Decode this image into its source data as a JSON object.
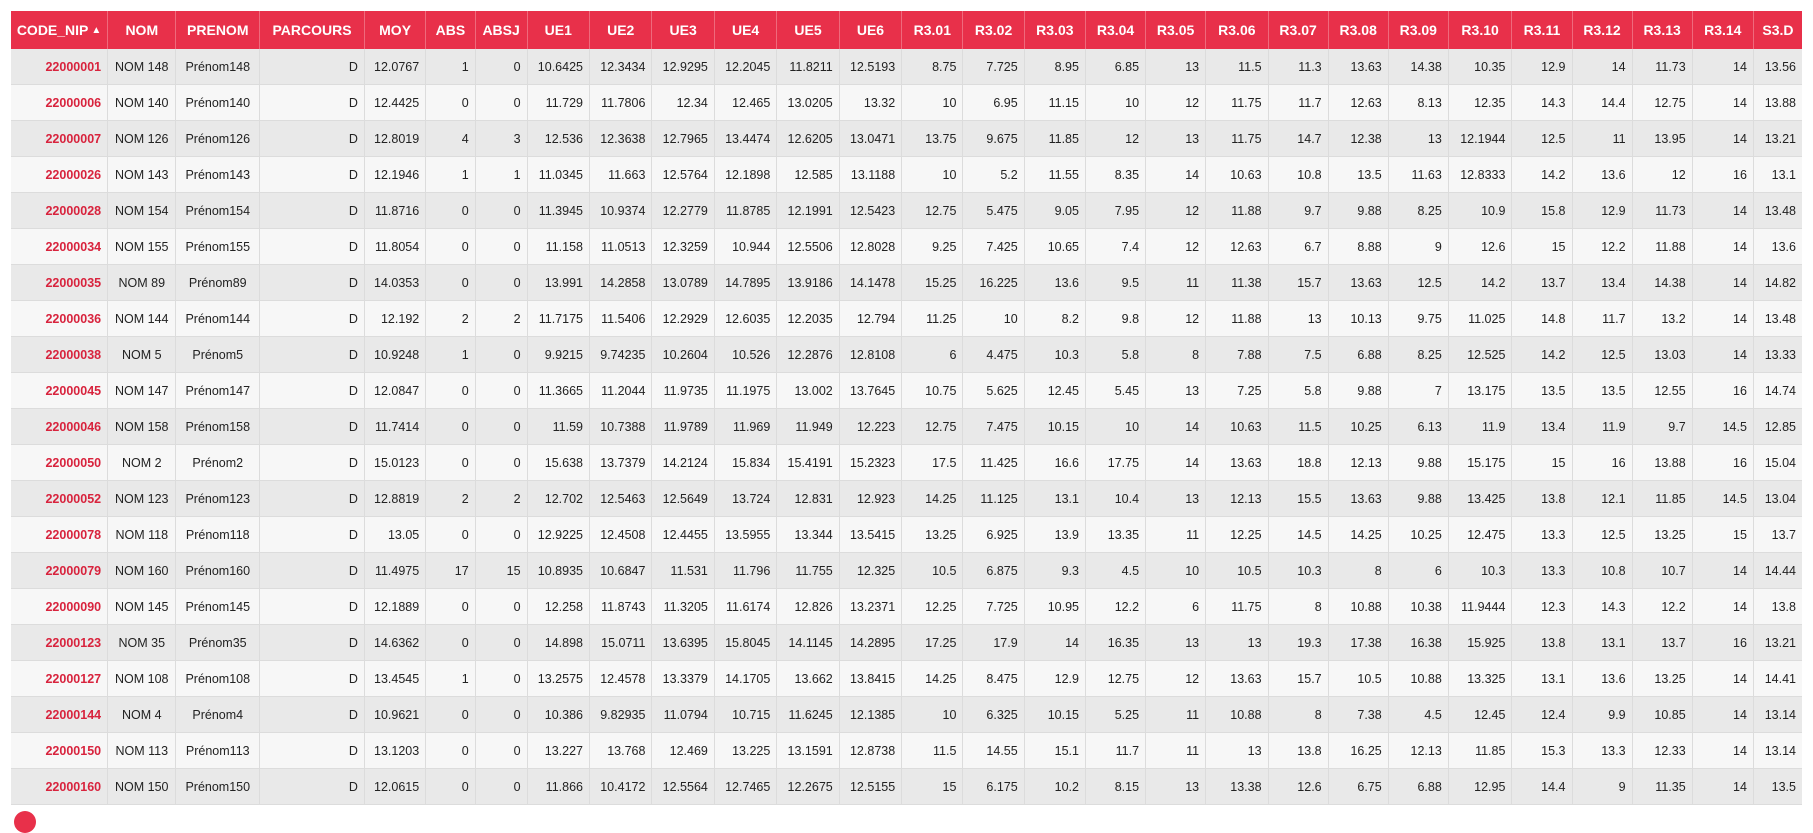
{
  "theme": {
    "header_bg": "#e8304a",
    "link_color": "#d8233d"
  },
  "columns": [
    "CODE_NIP",
    "NOM",
    "PRENOM",
    "PARCOURS",
    "MOY",
    "ABS",
    "ABSJ",
    "UE1",
    "UE2",
    "UE3",
    "UE4",
    "UE5",
    "UE6",
    "R3.01",
    "R3.02",
    "R3.03",
    "R3.04",
    "R3.05",
    "R3.06",
    "R3.07",
    "R3.08",
    "R3.09",
    "R3.10",
    "R3.11",
    "R3.12",
    "R3.13",
    "R3.14",
    "S3.D"
  ],
  "sort": {
    "column": "CODE_NIP",
    "icon": "sort-asc-icon",
    "glyph": "▲"
  },
  "rows": [
    [
      "22000001",
      "NOM 148",
      "Prénom148",
      "D",
      "12.0767",
      "1",
      "0",
      "10.6425",
      "12.3434",
      "12.9295",
      "12.2045",
      "11.8211",
      "12.5193",
      "8.75",
      "7.725",
      "8.95",
      "6.85",
      "13",
      "11.5",
      "11.3",
      "13.63",
      "14.38",
      "10.35",
      "12.9",
      "14",
      "11.73",
      "14",
      "13.56"
    ],
    [
      "22000006",
      "NOM 140",
      "Prénom140",
      "D",
      "12.4425",
      "0",
      "0",
      "11.729",
      "11.7806",
      "12.34",
      "12.465",
      "13.0205",
      "13.32",
      "10",
      "6.95",
      "11.15",
      "10",
      "12",
      "11.75",
      "11.7",
      "12.63",
      "8.13",
      "12.35",
      "14.3",
      "14.4",
      "12.75",
      "14",
      "13.88"
    ],
    [
      "22000007",
      "NOM 126",
      "Prénom126",
      "D",
      "12.8019",
      "4",
      "3",
      "12.536",
      "12.3638",
      "12.7965",
      "13.4474",
      "12.6205",
      "13.0471",
      "13.75",
      "9.675",
      "11.85",
      "12",
      "13",
      "11.75",
      "14.7",
      "12.38",
      "13",
      "12.1944",
      "12.5",
      "11",
      "13.95",
      "14",
      "13.21"
    ],
    [
      "22000026",
      "NOM 143",
      "Prénom143",
      "D",
      "12.1946",
      "1",
      "1",
      "11.0345",
      "11.663",
      "12.5764",
      "12.1898",
      "12.585",
      "13.1188",
      "10",
      "5.2",
      "11.55",
      "8.35",
      "14",
      "10.63",
      "10.8",
      "13.5",
      "11.63",
      "12.8333",
      "14.2",
      "13.6",
      "12",
      "16",
      "13.1"
    ],
    [
      "22000028",
      "NOM 154",
      "Prénom154",
      "D",
      "11.8716",
      "0",
      "0",
      "11.3945",
      "10.9374",
      "12.2779",
      "11.8785",
      "12.1991",
      "12.5423",
      "12.75",
      "5.475",
      "9.05",
      "7.95",
      "12",
      "11.88",
      "9.7",
      "9.88",
      "8.25",
      "10.9",
      "15.8",
      "12.9",
      "11.73",
      "14",
      "13.48"
    ],
    [
      "22000034",
      "NOM 155",
      "Prénom155",
      "D",
      "11.8054",
      "0",
      "0",
      "11.158",
      "11.0513",
      "12.3259",
      "10.944",
      "12.5506",
      "12.8028",
      "9.25",
      "7.425",
      "10.65",
      "7.4",
      "12",
      "12.63",
      "6.7",
      "8.88",
      "9",
      "12.6",
      "15",
      "12.2",
      "11.88",
      "14",
      "13.6"
    ],
    [
      "22000035",
      "NOM 89",
      "Prénom89",
      "D",
      "14.0353",
      "0",
      "0",
      "13.991",
      "14.2858",
      "13.0789",
      "14.7895",
      "13.9186",
      "14.1478",
      "15.25",
      "16.225",
      "13.6",
      "9.5",
      "11",
      "11.38",
      "15.7",
      "13.63",
      "12.5",
      "14.2",
      "13.7",
      "13.4",
      "14.38",
      "14",
      "14.82"
    ],
    [
      "22000036",
      "NOM 144",
      "Prénom144",
      "D",
      "12.192",
      "2",
      "2",
      "11.7175",
      "11.5406",
      "12.2929",
      "12.6035",
      "12.2035",
      "12.794",
      "11.25",
      "10",
      "8.2",
      "9.8",
      "12",
      "11.88",
      "13",
      "10.13",
      "9.75",
      "11.025",
      "14.8",
      "11.7",
      "13.2",
      "14",
      "13.48"
    ],
    [
      "22000038",
      "NOM 5",
      "Prénom5",
      "D",
      "10.9248",
      "1",
      "0",
      "9.9215",
      "9.74235",
      "10.2604",
      "10.526",
      "12.2876",
      "12.8108",
      "6",
      "4.475",
      "10.3",
      "5.8",
      "8",
      "7.88",
      "7.5",
      "6.88",
      "8.25",
      "12.525",
      "14.2",
      "12.5",
      "13.03",
      "14",
      "13.33"
    ],
    [
      "22000045",
      "NOM 147",
      "Prénom147",
      "D",
      "12.0847",
      "0",
      "0",
      "11.3665",
      "11.2044",
      "11.9735",
      "11.1975",
      "13.002",
      "13.7645",
      "10.75",
      "5.625",
      "12.45",
      "5.45",
      "13",
      "7.25",
      "5.8",
      "9.88",
      "7",
      "13.175",
      "13.5",
      "13.5",
      "12.55",
      "16",
      "14.74"
    ],
    [
      "22000046",
      "NOM 158",
      "Prénom158",
      "D",
      "11.7414",
      "0",
      "0",
      "11.59",
      "10.7388",
      "11.9789",
      "11.969",
      "11.949",
      "12.223",
      "12.75",
      "7.475",
      "10.15",
      "10",
      "14",
      "10.63",
      "11.5",
      "10.25",
      "6.13",
      "11.9",
      "13.4",
      "11.9",
      "9.7",
      "14.5",
      "12.85"
    ],
    [
      "22000050",
      "NOM 2",
      "Prénom2",
      "D",
      "15.0123",
      "0",
      "0",
      "15.638",
      "13.7379",
      "14.2124",
      "15.834",
      "15.4191",
      "15.2323",
      "17.5",
      "11.425",
      "16.6",
      "17.75",
      "14",
      "13.63",
      "18.8",
      "12.13",
      "9.88",
      "15.175",
      "15",
      "16",
      "13.88",
      "16",
      "15.04"
    ],
    [
      "22000052",
      "NOM 123",
      "Prénom123",
      "D",
      "12.8819",
      "2",
      "2",
      "12.702",
      "12.5463",
      "12.5649",
      "13.724",
      "12.831",
      "12.923",
      "14.25",
      "11.125",
      "13.1",
      "10.4",
      "13",
      "12.13",
      "15.5",
      "13.63",
      "9.88",
      "13.425",
      "13.8",
      "12.1",
      "11.85",
      "14.5",
      "13.04"
    ],
    [
      "22000078",
      "NOM 118",
      "Prénom118",
      "D",
      "13.05",
      "0",
      "0",
      "12.9225",
      "12.4508",
      "12.4455",
      "13.5955",
      "13.344",
      "13.5415",
      "13.25",
      "6.925",
      "13.9",
      "13.35",
      "11",
      "12.25",
      "14.5",
      "14.25",
      "10.25",
      "12.475",
      "13.3",
      "12.5",
      "13.25",
      "15",
      "13.7"
    ],
    [
      "22000079",
      "NOM 160",
      "Prénom160",
      "D",
      "11.4975",
      "17",
      "15",
      "10.8935",
      "10.6847",
      "11.531",
      "11.796",
      "11.755",
      "12.325",
      "10.5",
      "6.875",
      "9.3",
      "4.5",
      "10",
      "10.5",
      "10.3",
      "8",
      "6",
      "10.3",
      "13.3",
      "10.8",
      "10.7",
      "14",
      "14.44"
    ],
    [
      "22000090",
      "NOM 145",
      "Prénom145",
      "D",
      "12.1889",
      "0",
      "0",
      "12.258",
      "11.8743",
      "11.3205",
      "11.6174",
      "12.826",
      "13.2371",
      "12.25",
      "7.725",
      "10.95",
      "12.2",
      "6",
      "11.75",
      "8",
      "10.88",
      "10.38",
      "11.9444",
      "12.3",
      "14.3",
      "12.2",
      "14",
      "13.8"
    ],
    [
      "22000123",
      "NOM 35",
      "Prénom35",
      "D",
      "14.6362",
      "0",
      "0",
      "14.898",
      "15.0711",
      "13.6395",
      "15.8045",
      "14.1145",
      "14.2895",
      "17.25",
      "17.9",
      "14",
      "16.35",
      "13",
      "13",
      "19.3",
      "17.38",
      "16.38",
      "15.925",
      "13.8",
      "13.1",
      "13.7",
      "16",
      "13.21"
    ],
    [
      "22000127",
      "NOM 108",
      "Prénom108",
      "D",
      "13.4545",
      "1",
      "0",
      "13.2575",
      "12.4578",
      "13.3379",
      "14.1705",
      "13.662",
      "13.8415",
      "14.25",
      "8.475",
      "12.9",
      "12.75",
      "12",
      "13.63",
      "15.7",
      "10.5",
      "10.88",
      "13.325",
      "13.1",
      "13.6",
      "13.25",
      "14",
      "14.41"
    ],
    [
      "22000144",
      "NOM 4",
      "Prénom4",
      "D",
      "10.9621",
      "0",
      "0",
      "10.386",
      "9.82935",
      "11.0794",
      "10.715",
      "11.6245",
      "12.1385",
      "10",
      "6.325",
      "10.15",
      "5.25",
      "11",
      "10.88",
      "8",
      "7.38",
      "4.5",
      "12.45",
      "12.4",
      "9.9",
      "10.85",
      "14",
      "13.14"
    ],
    [
      "22000150",
      "NOM 113",
      "Prénom113",
      "D",
      "13.1203",
      "0",
      "0",
      "13.227",
      "13.768",
      "12.469",
      "13.225",
      "13.1591",
      "12.8738",
      "11.5",
      "14.55",
      "15.1",
      "11.7",
      "11",
      "13",
      "13.8",
      "16.25",
      "12.13",
      "11.85",
      "15.3",
      "13.3",
      "12.33",
      "14",
      "13.14"
    ],
    [
      "22000160",
      "NOM 150",
      "Prénom150",
      "D",
      "12.0615",
      "0",
      "0",
      "11.866",
      "10.4172",
      "12.5564",
      "12.7465",
      "12.2675",
      "12.5155",
      "15",
      "6.175",
      "10.2",
      "8.15",
      "13",
      "13.38",
      "12.6",
      "6.75",
      "6.88",
      "12.95",
      "14.4",
      "9",
      "11.35",
      "14",
      "13.5"
    ]
  ]
}
